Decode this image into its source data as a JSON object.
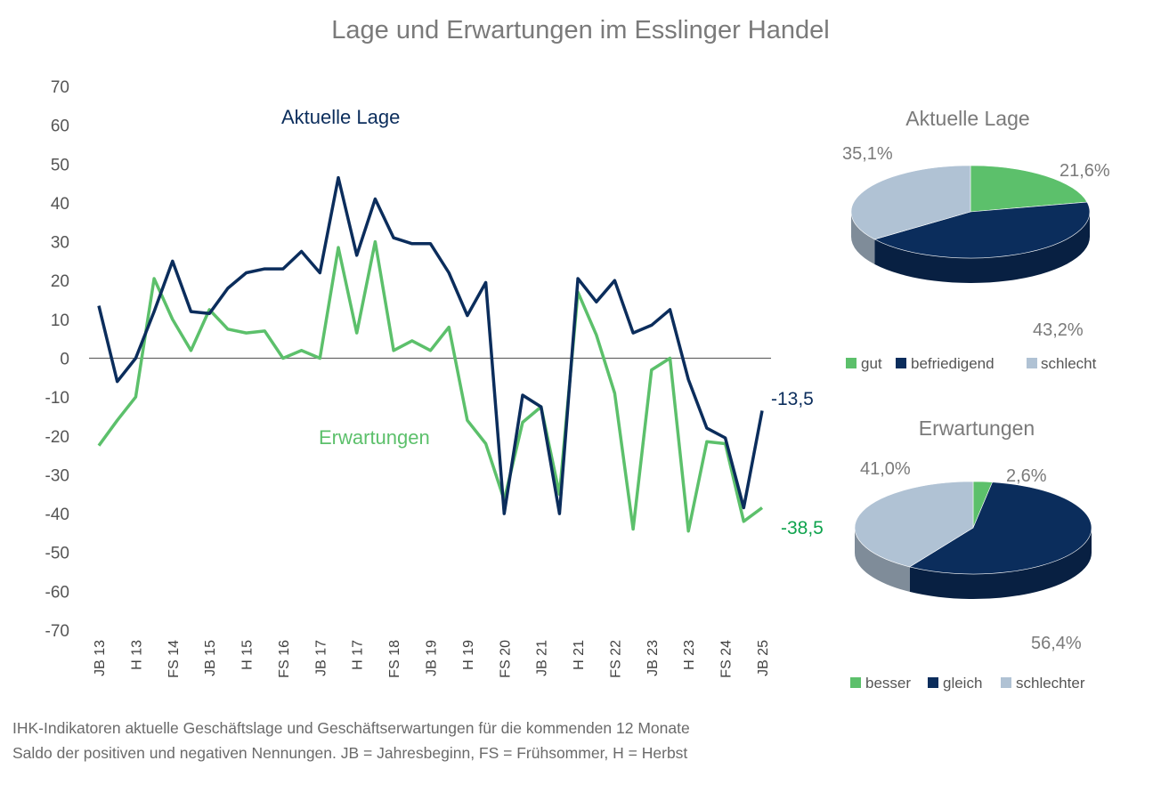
{
  "title": "Lage und Erwartungen im Esslinger Handel",
  "colors": {
    "lage": "#0b2d5c",
    "erwartungen": "#5cc06b",
    "erwartungen_label": "#0fa34d",
    "schlecht": "#b0c2d4",
    "axis": "#555555"
  },
  "chart_data": [
    {
      "type": "line",
      "ylim": [
        -70,
        70
      ],
      "yticks": [
        70,
        60,
        50,
        40,
        30,
        20,
        10,
        0,
        -10,
        -20,
        -30,
        -40,
        -50,
        -60,
        -70
      ],
      "category_labels": [
        "JB 13",
        "H 13",
        "FS 14",
        "JB 15",
        "H 15",
        "FS 16",
        "JB 17",
        "H 17",
        "FS 18",
        "JB 19",
        "H 19",
        "FS 20",
        "JB 21",
        "H 21",
        "FS 22",
        "JB 23",
        "H 23",
        "FS 24",
        "JB 25"
      ],
      "series": [
        {
          "name": "Aktuelle Lage",
          "values": [
            13.5,
            -6,
            0,
            12,
            25,
            12,
            11.5,
            18,
            22,
            23,
            23,
            27.5,
            22,
            46.5,
            26.5,
            41,
            31,
            29.5,
            29.5,
            22,
            11,
            19.5,
            -40,
            -9.5,
            -12.5,
            -40,
            20.5,
            14.5,
            20,
            6.5,
            8.5,
            12.5,
            -5.5,
            -18,
            -20.5,
            -38.5,
            -13.5
          ],
          "end_label": "-13,5"
        },
        {
          "name": "Erwartungen",
          "values": [
            -22.5,
            -16,
            -10,
            20.5,
            10,
            2,
            12.5,
            7.5,
            6.5,
            7,
            0,
            2,
            0,
            28.5,
            6.5,
            30,
            2,
            4.5,
            2,
            8,
            -16,
            -22,
            -36.5,
            -16.5,
            -12.5,
            -35,
            17,
            6,
            -9,
            -44,
            -3,
            0,
            -44.5,
            -21.5,
            -22,
            -42,
            -38.5
          ],
          "end_label": "-38,5"
        }
      ]
    },
    {
      "type": "pie",
      "title": "Aktuelle Lage",
      "labels": [
        "gut",
        "befriedigend",
        "schlecht"
      ],
      "values": [
        21.6,
        43.2,
        35.1
      ],
      "value_labels": [
        "21,6%",
        "43,2%",
        "35,1%"
      ]
    },
    {
      "type": "pie",
      "title": "Erwartungen",
      "labels": [
        "besser",
        "gleich",
        "schlechter"
      ],
      "values": [
        2.6,
        56.4,
        41.0
      ],
      "value_labels": [
        "2,6%",
        "56,4%",
        "41,0%"
      ]
    }
  ],
  "footnote": {
    "line1": "IHK-Indikatoren aktuelle Geschäftslage und Geschäftserwartungen für die kommenden 12 Monate",
    "line2": "Saldo der positiven und negativen Nennungen. JB = Jahresbeginn, FS = Frühsommer, H = Herbst"
  }
}
